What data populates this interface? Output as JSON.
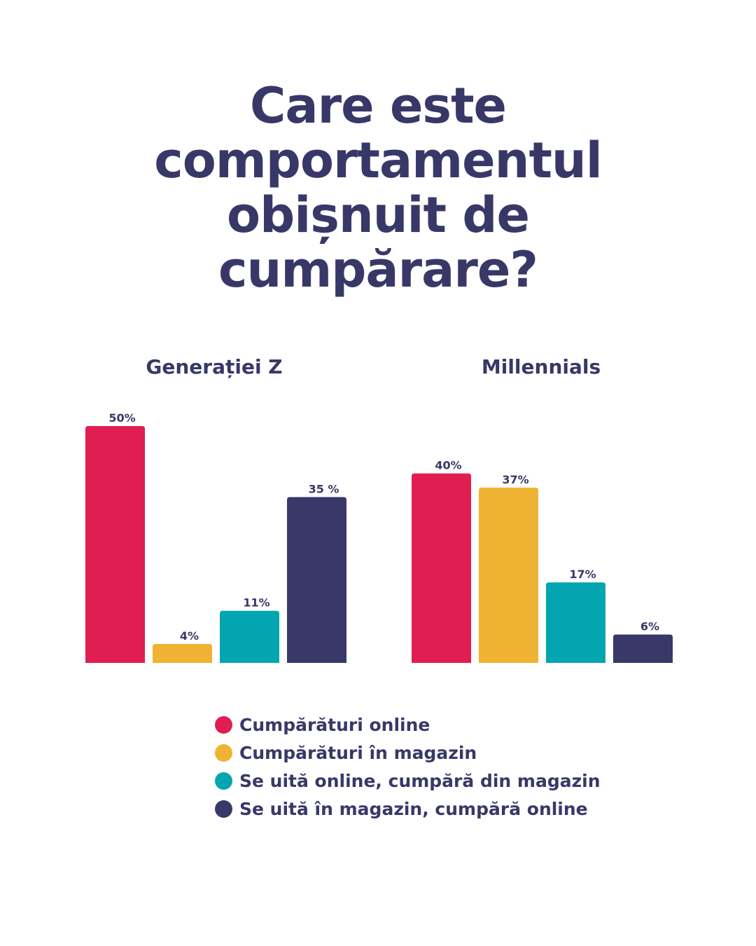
{
  "title_lines": [
    "Care este",
    "comportamentul",
    "obișnuit de",
    "cumpărare?"
  ],
  "chart_data": {
    "type": "bar",
    "title": "Care este comportamentul obișnuit de cumpărare?",
    "unit": "%",
    "categories": [
      "Cumpărături online",
      "Cumpărături în magazin",
      "Se uită online, cumpără din magazin",
      "Se uită în magazin, cumpără online"
    ],
    "colors": [
      "#E01E52",
      "#F0B232",
      "#03A6B0",
      "#393869"
    ],
    "ylim": [
      0,
      50
    ],
    "groups": [
      {
        "name": "Generației Z",
        "values": [
          50,
          4,
          11,
          35
        ],
        "labels": [
          "50%",
          "4%",
          "11%",
          "35 %"
        ]
      },
      {
        "name": "Millennials",
        "values": [
          40,
          37,
          17,
          6
        ],
        "labels": [
          "40%",
          "37%",
          "17%",
          "6%"
        ]
      }
    ]
  }
}
